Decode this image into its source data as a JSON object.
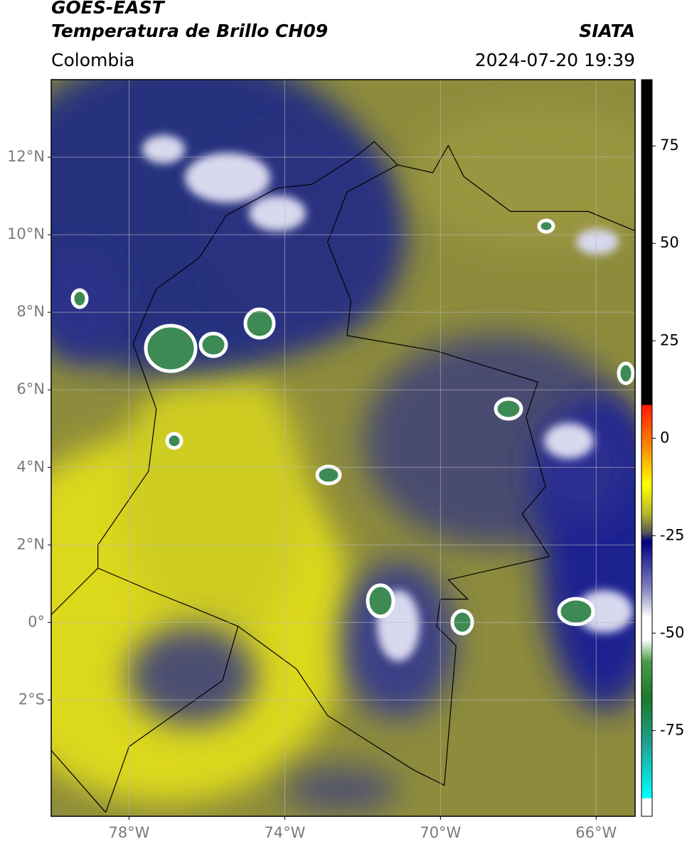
{
  "header": {
    "title": "GOES-EAST",
    "subtitle": "Temperatura de Brillo CH09",
    "source": "SIATA",
    "region": "Colombia",
    "datetime": "2024-07-20 19:39"
  },
  "map": {
    "lon_lim": [
      -80,
      -65
    ],
    "lat_lim": [
      -5,
      14
    ],
    "lon_ticks": [
      {
        "value": -78,
        "label": "78°W"
      },
      {
        "value": -74,
        "label": "74°W"
      },
      {
        "value": -70,
        "label": "70°W"
      },
      {
        "value": -66,
        "label": "66°W"
      }
    ],
    "lat_ticks": [
      {
        "value": 12,
        "label": "12°N"
      },
      {
        "value": 10,
        "label": "10°N"
      },
      {
        "value": 8,
        "label": "8°N"
      },
      {
        "value": 6,
        "label": "6°N"
      },
      {
        "value": 4,
        "label": "4°N"
      },
      {
        "value": 2,
        "label": "2°N"
      },
      {
        "value": 0,
        "label": "0°"
      },
      {
        "value": -2,
        "label": "2°S"
      }
    ],
    "grid": true
  },
  "colorbar": {
    "lim": [
      -97,
      92
    ],
    "ticks": [
      75,
      50,
      25,
      0,
      -25,
      -50,
      -75
    ]
  }
}
